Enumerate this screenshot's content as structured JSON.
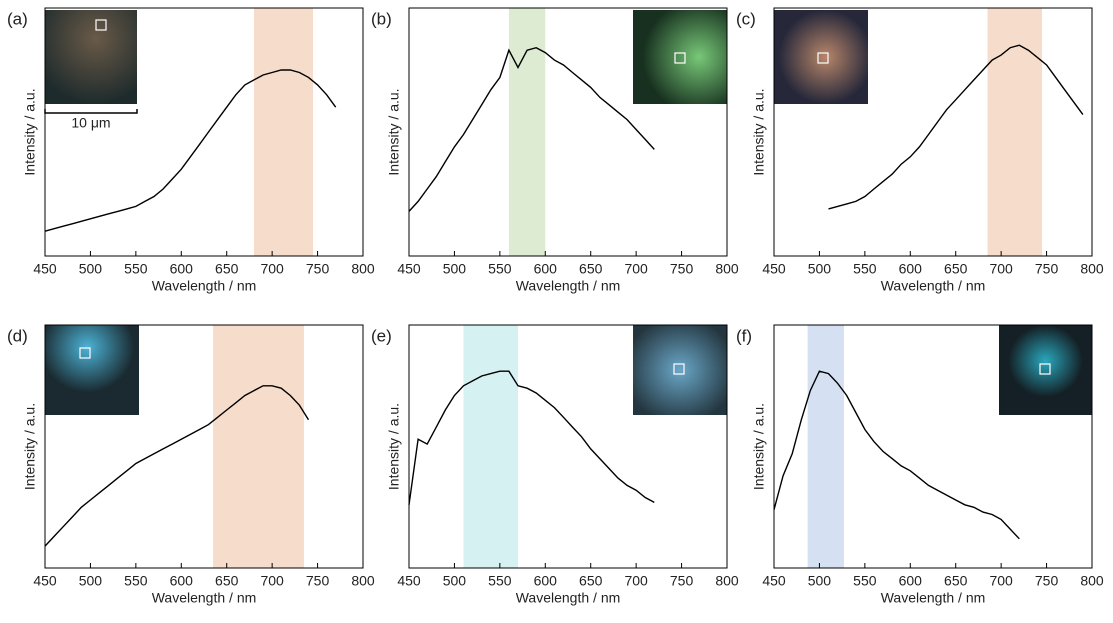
{
  "chart_data": [
    {
      "type": "line",
      "panel": "(a)",
      "x_label": "Wavelength / nm",
      "y_label": "Intensity / a.u.",
      "scale_bar": "10 μm",
      "xlim": [
        450,
        800
      ],
      "xticks": [
        450,
        500,
        550,
        600,
        650,
        700,
        750,
        800
      ],
      "ylim": [
        0,
        100
      ],
      "band": [
        680,
        745
      ],
      "band_color": "#f6dccb",
      "series": [
        {
          "color": "#000000",
          "x": [
            450,
            460,
            470,
            480,
            490,
            500,
            510,
            520,
            530,
            540,
            550,
            560,
            570,
            580,
            590,
            600,
            610,
            620,
            630,
            640,
            650,
            660,
            670,
            680,
            690,
            700,
            710,
            720,
            730,
            740,
            750,
            760,
            770
          ],
          "values": [
            10,
            11,
            12,
            13,
            14,
            15,
            16,
            17,
            18,
            19,
            20,
            22,
            24,
            27,
            31,
            35,
            40,
            45,
            50,
            55,
            60,
            65,
            69,
            71,
            73,
            74,
            75,
            75,
            74,
            72,
            69,
            65,
            60
          ]
        }
      ]
    },
    {
      "type": "line",
      "panel": "(b)",
      "x_label": "Wavelength / nm",
      "y_label": "Intensity / a.u.",
      "xlim": [
        450,
        800
      ],
      "xticks": [
        450,
        500,
        550,
        600,
        650,
        700,
        750,
        800
      ],
      "ylim": [
        0,
        100
      ],
      "band": [
        560,
        600
      ],
      "band_color": "#dcebd2",
      "series": [
        {
          "color": "#000000",
          "x": [
            450,
            460,
            470,
            480,
            490,
            500,
            510,
            520,
            530,
            540,
            550,
            560,
            570,
            580,
            590,
            600,
            610,
            620,
            630,
            640,
            650,
            660,
            670,
            680,
            690,
            700,
            710,
            720
          ],
          "values": [
            18,
            22,
            27,
            32,
            38,
            44,
            49,
            55,
            61,
            67,
            72,
            83,
            76,
            83,
            84,
            82,
            79,
            77,
            74,
            71,
            68,
            64,
            61,
            58,
            55,
            51,
            47,
            43
          ]
        }
      ]
    },
    {
      "type": "line",
      "panel": "(c)",
      "x_label": "Wavelength / nm",
      "y_label": "Intensity / a.u.",
      "xlim": [
        450,
        800
      ],
      "xticks": [
        450,
        500,
        550,
        600,
        650,
        700,
        750,
        800
      ],
      "ylim": [
        0,
        100
      ],
      "band": [
        685,
        745
      ],
      "band_color": "#f6dccb",
      "series": [
        {
          "color": "#000000",
          "x": [
            510,
            520,
            530,
            540,
            550,
            560,
            570,
            580,
            590,
            600,
            610,
            620,
            630,
            640,
            650,
            660,
            670,
            680,
            690,
            700,
            710,
            720,
            730,
            740,
            750,
            760,
            770,
            780,
            790
          ],
          "values": [
            19,
            20,
            21,
            22,
            24,
            27,
            30,
            33,
            37,
            40,
            44,
            49,
            54,
            59,
            63,
            67,
            71,
            75,
            79,
            81,
            84,
            85,
            83,
            80,
            77,
            72,
            67,
            62,
            57
          ]
        }
      ]
    },
    {
      "type": "line",
      "panel": "(d)",
      "x_label": "Wavelength / nm",
      "y_label": "Intensity / a.u.",
      "xlim": [
        450,
        800
      ],
      "xticks": [
        450,
        500,
        550,
        600,
        650,
        700,
        750,
        800
      ],
      "ylim": [
        0,
        100
      ],
      "band": [
        635,
        735
      ],
      "band_color": "#f6dccb",
      "series": [
        {
          "color": "#000000",
          "x": [
            450,
            460,
            470,
            480,
            490,
            500,
            510,
            520,
            530,
            540,
            550,
            560,
            570,
            580,
            590,
            600,
            610,
            620,
            630,
            640,
            650,
            660,
            670,
            680,
            690,
            700,
            710,
            720,
            730,
            740
          ],
          "values": [
            9,
            13,
            17,
            21,
            25,
            28,
            31,
            34,
            37,
            40,
            43,
            45,
            47,
            49,
            51,
            53,
            55,
            57,
            59,
            62,
            65,
            68,
            71,
            73,
            75,
            75,
            74,
            71,
            67,
            61
          ]
        }
      ]
    },
    {
      "type": "line",
      "panel": "(e)",
      "x_label": "Wavelength / nm",
      "y_label": "Intensity / a.u.",
      "xlim": [
        450,
        800
      ],
      "xticks": [
        450,
        500,
        550,
        600,
        650,
        700,
        750,
        800
      ],
      "ylim": [
        0,
        100
      ],
      "band": [
        510,
        570
      ],
      "band_color": "#d6f1f1",
      "series": [
        {
          "color": "#000000",
          "x": [
            450,
            460,
            470,
            480,
            490,
            500,
            510,
            520,
            530,
            540,
            550,
            560,
            570,
            580,
            590,
            600,
            610,
            620,
            630,
            640,
            650,
            660,
            670,
            680,
            690,
            700,
            710,
            720
          ],
          "values": [
            26,
            53,
            51,
            58,
            65,
            71,
            75,
            77,
            79,
            80,
            81,
            81,
            75,
            74,
            72,
            69,
            66,
            62,
            58,
            54,
            49,
            45,
            41,
            37,
            34,
            32,
            29,
            27
          ]
        }
      ]
    },
    {
      "type": "line",
      "panel": "(f)",
      "x_label": "Wavelength / nm",
      "y_label": "Intensity / a.u.",
      "xlim": [
        450,
        800
      ],
      "xticks": [
        450,
        500,
        550,
        600,
        650,
        700,
        750,
        800
      ],
      "ylim": [
        0,
        100
      ],
      "band": [
        487,
        527
      ],
      "band_color": "#d5e1f2",
      "series": [
        {
          "color": "#000000",
          "x": [
            450,
            460,
            470,
            480,
            490,
            500,
            510,
            520,
            530,
            540,
            550,
            560,
            570,
            580,
            590,
            600,
            610,
            620,
            630,
            640,
            650,
            660,
            670,
            680,
            690,
            700,
            710,
            720
          ],
          "values": [
            24,
            38,
            47,
            61,
            73,
            81,
            80,
            76,
            71,
            64,
            57,
            52,
            48,
            45,
            42,
            40,
            37,
            34,
            32,
            30,
            28,
            26,
            25,
            23,
            22,
            20,
            16,
            12
          ]
        }
      ]
    }
  ]
}
